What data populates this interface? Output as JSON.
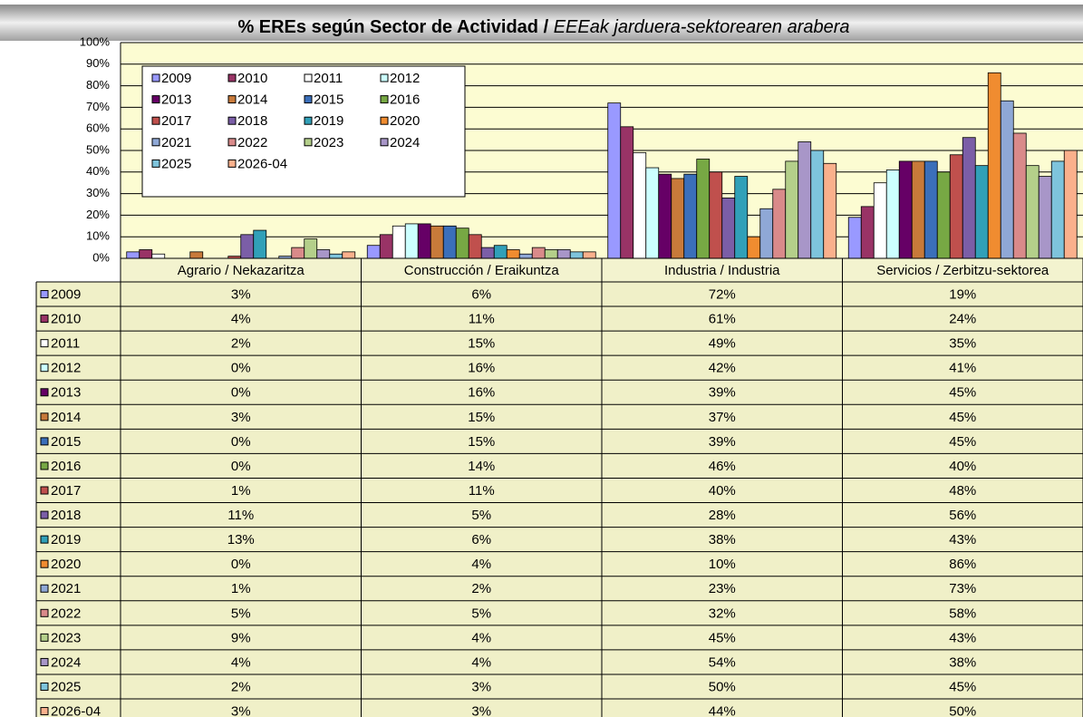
{
  "chart_data": {
    "type": "bar",
    "title": "%  EREs según Sector de Actividad /",
    "title_basque": "EEEak jarduera-sektorearen arabera",
    "categories": [
      "Agrario / Nekazaritza",
      "Construcción / Eraikuntza",
      "Industria / Industria",
      "Servicios / Zerbitzu-sektorea"
    ],
    "ylim": [
      0,
      100
    ],
    "yticks": [
      {
        "value": 0,
        "label": "0%"
      },
      {
        "value": 10,
        "label": "10%"
      },
      {
        "value": 20,
        "label": "20%"
      },
      {
        "value": 30,
        "label": "30%"
      },
      {
        "value": 40,
        "label": "40%"
      },
      {
        "value": 50,
        "label": "50%"
      },
      {
        "value": 60,
        "label": "60%"
      },
      {
        "value": 70,
        "label": "70%"
      },
      {
        "value": 80,
        "label": "80%"
      },
      {
        "value": 90,
        "label": "90%"
      },
      {
        "value": 100,
        "label": "100%"
      }
    ],
    "grid": true,
    "legend": "top-left",
    "series": [
      {
        "name": "2009",
        "color": "#9999ff",
        "values": [
          3,
          6,
          72,
          19
        ],
        "value_labels": [
          "3%",
          "6%",
          "72%",
          "19%"
        ]
      },
      {
        "name": "2010",
        "color": "#993366",
        "values": [
          4,
          11,
          61,
          24
        ],
        "value_labels": [
          "4%",
          "11%",
          "61%",
          "24%"
        ]
      },
      {
        "name": "2011",
        "color": "#ffffff",
        "values": [
          2,
          15,
          49,
          35
        ],
        "value_labels": [
          "2%",
          "15%",
          "49%",
          "35%"
        ]
      },
      {
        "name": "2012",
        "color": "#ccffff",
        "values": [
          0,
          16,
          42,
          41
        ],
        "value_labels": [
          "0%",
          "16%",
          "42%",
          "41%"
        ]
      },
      {
        "name": "2013",
        "color": "#660066",
        "values": [
          0,
          16,
          39,
          45
        ],
        "value_labels": [
          "0%",
          "16%",
          "39%",
          "45%"
        ]
      },
      {
        "name": "2014",
        "color": "#c87a3a",
        "values": [
          3,
          15,
          37,
          45
        ],
        "value_labels": [
          "3%",
          "15%",
          "37%",
          "45%"
        ]
      },
      {
        "name": "2015",
        "color": "#3b6fba",
        "values": [
          0,
          15,
          39,
          45
        ],
        "value_labels": [
          "0%",
          "15%",
          "39%",
          "45%"
        ]
      },
      {
        "name": "2016",
        "color": "#77a844",
        "values": [
          0,
          14,
          46,
          40
        ],
        "value_labels": [
          "0%",
          "14%",
          "46%",
          "40%"
        ]
      },
      {
        "name": "2017",
        "color": "#c0504d",
        "values": [
          1,
          11,
          40,
          48
        ],
        "value_labels": [
          "1%",
          "11%",
          "40%",
          "48%"
        ]
      },
      {
        "name": "2018",
        "color": "#7b5ea7",
        "values": [
          11,
          5,
          28,
          56
        ],
        "value_labels": [
          "11%",
          "5%",
          "28%",
          "56%"
        ]
      },
      {
        "name": "2019",
        "color": "#31a0b8",
        "values": [
          13,
          6,
          38,
          43
        ],
        "value_labels": [
          "13%",
          "6%",
          "38%",
          "43%"
        ]
      },
      {
        "name": "2020",
        "color": "#f08c30",
        "values": [
          0,
          4,
          10,
          86
        ],
        "value_labels": [
          "0%",
          "4%",
          "10%",
          "86%"
        ]
      },
      {
        "name": "2021",
        "color": "#8fa8d6",
        "values": [
          1,
          2,
          23,
          73
        ],
        "value_labels": [
          "1%",
          "2%",
          "23%",
          "73%"
        ]
      },
      {
        "name": "2022",
        "color": "#d98a8a",
        "values": [
          5,
          5,
          32,
          58
        ],
        "value_labels": [
          "5%",
          "5%",
          "32%",
          "58%"
        ]
      },
      {
        "name": "2023",
        "color": "#b4cf8a",
        "values": [
          9,
          4,
          45,
          43
        ],
        "value_labels": [
          "9%",
          "4%",
          "45%",
          "43%"
        ]
      },
      {
        "name": "2024",
        "color": "#a896c8",
        "values": [
          4,
          4,
          54,
          38
        ],
        "value_labels": [
          "4%",
          "4%",
          "54%",
          "38%"
        ]
      },
      {
        "name": "2025",
        "color": "#7ec4dc",
        "values": [
          2,
          3,
          50,
          45
        ],
        "value_labels": [
          "2%",
          "3%",
          "50%",
          "45%"
        ]
      },
      {
        "name": "2026-04",
        "color": "#fab08c",
        "values": [
          3,
          3,
          44,
          50
        ],
        "value_labels": [
          "3%",
          "3%",
          "44%",
          "50%"
        ]
      }
    ]
  }
}
